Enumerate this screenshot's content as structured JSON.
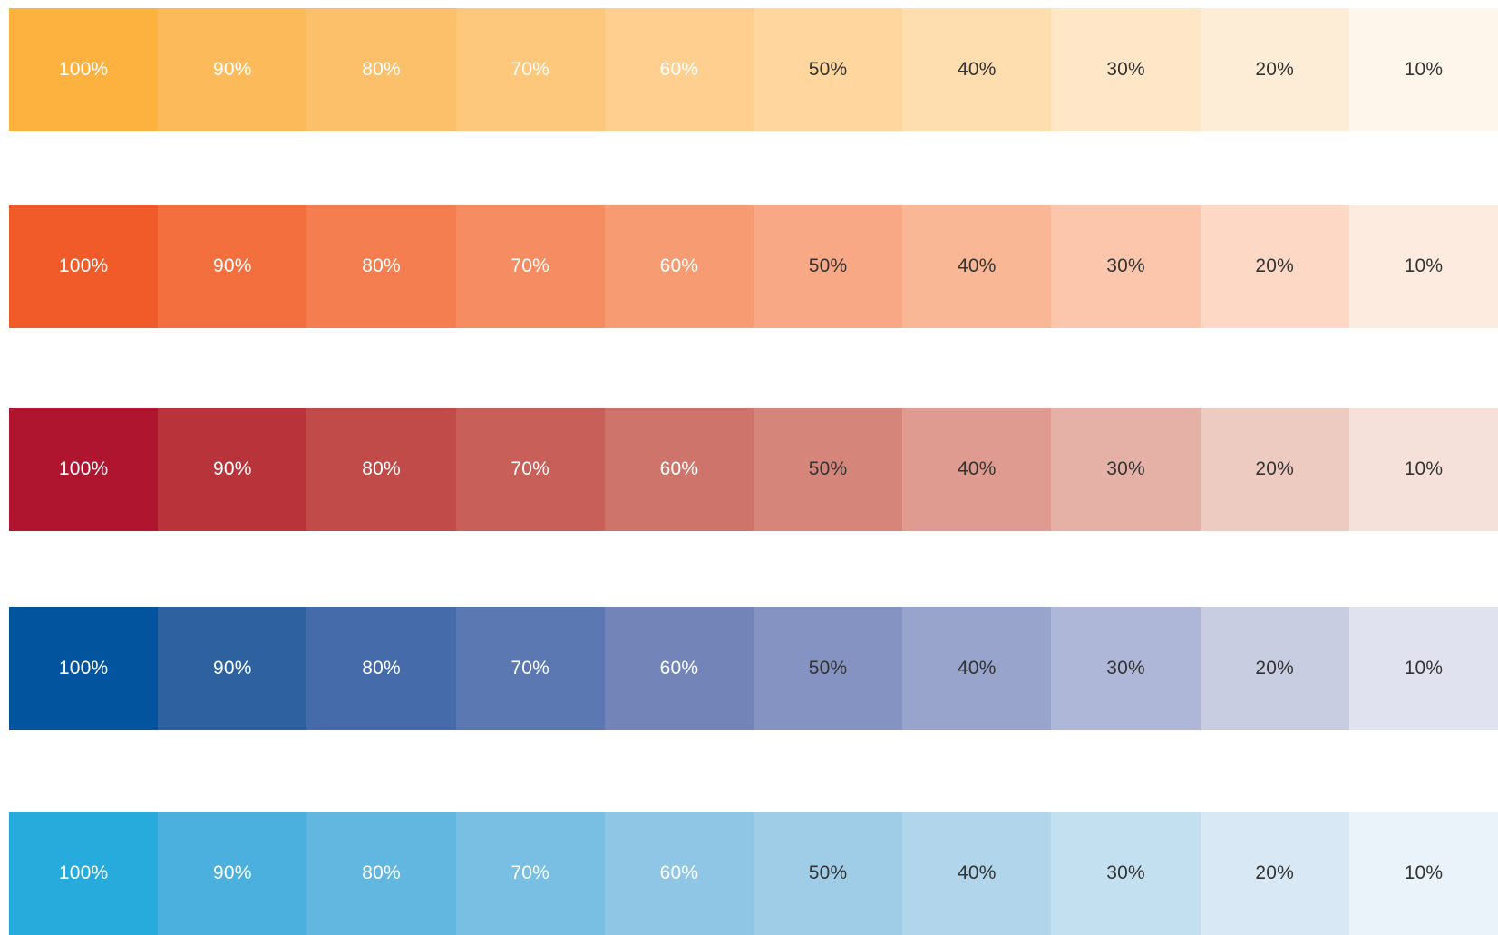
{
  "palettes": [
    {
      "name": "",
      "swatches": [
        {
          "label": "100%",
          "color": "#FDB240",
          "text": "light"
        },
        {
          "label": "90%",
          "color": "#FDBA5A",
          "text": "light"
        },
        {
          "label": "80%",
          "color": "#FDC06A",
          "text": "light"
        },
        {
          "label": "70%",
          "color": "#FEC87C",
          "text": "light"
        },
        {
          "label": "60%",
          "color": "#FECF8E",
          "text": "light"
        },
        {
          "label": "50%",
          "color": "#FED69E",
          "text": "dark"
        },
        {
          "label": "40%",
          "color": "#FEDDAF",
          "text": "dark"
        },
        {
          "label": "30%",
          "color": "#FEE6C6",
          "text": "dark"
        },
        {
          "label": "20%",
          "color": "#FEEDD6",
          "text": "dark"
        },
        {
          "label": "10%",
          "color": "#FEF6EA",
          "text": "dark"
        }
      ]
    },
    {
      "name": "",
      "swatches": [
        {
          "label": "100%",
          "color": "#F15A29",
          "text": "light"
        },
        {
          "label": "90%",
          "color": "#F36F3D",
          "text": "light"
        },
        {
          "label": "80%",
          "color": "#F47E4F",
          "text": "light"
        },
        {
          "label": "70%",
          "color": "#F68C61",
          "text": "light"
        },
        {
          "label": "60%",
          "color": "#F79B72",
          "text": "light"
        },
        {
          "label": "50%",
          "color": "#F8A885",
          "text": "dark"
        },
        {
          "label": "40%",
          "color": "#FAB796",
          "text": "dark"
        },
        {
          "label": "30%",
          "color": "#FBC6AC",
          "text": "dark"
        },
        {
          "label": "20%",
          "color": "#FCD8C5",
          "text": "dark"
        },
        {
          "label": "10%",
          "color": "#FDEBDF",
          "text": "dark"
        }
      ]
    },
    {
      "name": "",
      "swatches": [
        {
          "label": "100%",
          "color": "#B01530",
          "text": "light"
        },
        {
          "label": "90%",
          "color": "#B8343A",
          "text": "light"
        },
        {
          "label": "80%",
          "color": "#C04B48",
          "text": "light"
        },
        {
          "label": "70%",
          "color": "#C86059",
          "text": "light"
        },
        {
          "label": "60%",
          "color": "#CE746A",
          "text": "light"
        },
        {
          "label": "50%",
          "color": "#D6857A",
          "text": "dark"
        },
        {
          "label": "40%",
          "color": "#DF9B8F",
          "text": "dark"
        },
        {
          "label": "30%",
          "color": "#E5B0A6",
          "text": "dark"
        },
        {
          "label": "20%",
          "color": "#EDCBC0",
          "text": "dark"
        },
        {
          "label": "10%",
          "color": "#F5E1DA",
          "text": "dark"
        }
      ]
    },
    {
      "name": "",
      "swatches": [
        {
          "label": "100%",
          "color": "#02549E",
          "text": "light"
        },
        {
          "label": "90%",
          "color": "#2D61A0",
          "text": "light"
        },
        {
          "label": "80%",
          "color": "#466BAA",
          "text": "light"
        },
        {
          "label": "70%",
          "color": "#5C78B3",
          "text": "light"
        },
        {
          "label": "60%",
          "color": "#7384B8",
          "text": "light"
        },
        {
          "label": "50%",
          "color": "#8593C3",
          "text": "dark"
        },
        {
          "label": "40%",
          "color": "#98A4CC",
          "text": "dark"
        },
        {
          "label": "30%",
          "color": "#AEB7D7",
          "text": "dark"
        },
        {
          "label": "20%",
          "color": "#C8CDE2",
          "text": "dark"
        },
        {
          "label": "10%",
          "color": "#E0E2EF",
          "text": "dark"
        }
      ]
    },
    {
      "name": "",
      "swatches": [
        {
          "label": "100%",
          "color": "#27AADC",
          "text": "light"
        },
        {
          "label": "90%",
          "color": "#4BB0DD",
          "text": "light"
        },
        {
          "label": "80%",
          "color": "#61B7E0",
          "text": "light"
        },
        {
          "label": "70%",
          "color": "#79BFE3",
          "text": "light"
        },
        {
          "label": "60%",
          "color": "#8FC6E6",
          "text": "light"
        },
        {
          "label": "50%",
          "color": "#9FCDE7",
          "text": "dark"
        },
        {
          "label": "40%",
          "color": "#B1D6EC",
          "text": "dark"
        },
        {
          "label": "30%",
          "color": "#C3E0F0",
          "text": "dark"
        },
        {
          "label": "20%",
          "color": "#D8E9F5",
          "text": "dark"
        },
        {
          "label": "10%",
          "color": "#EAF2FA",
          "text": "dark"
        }
      ]
    }
  ]
}
